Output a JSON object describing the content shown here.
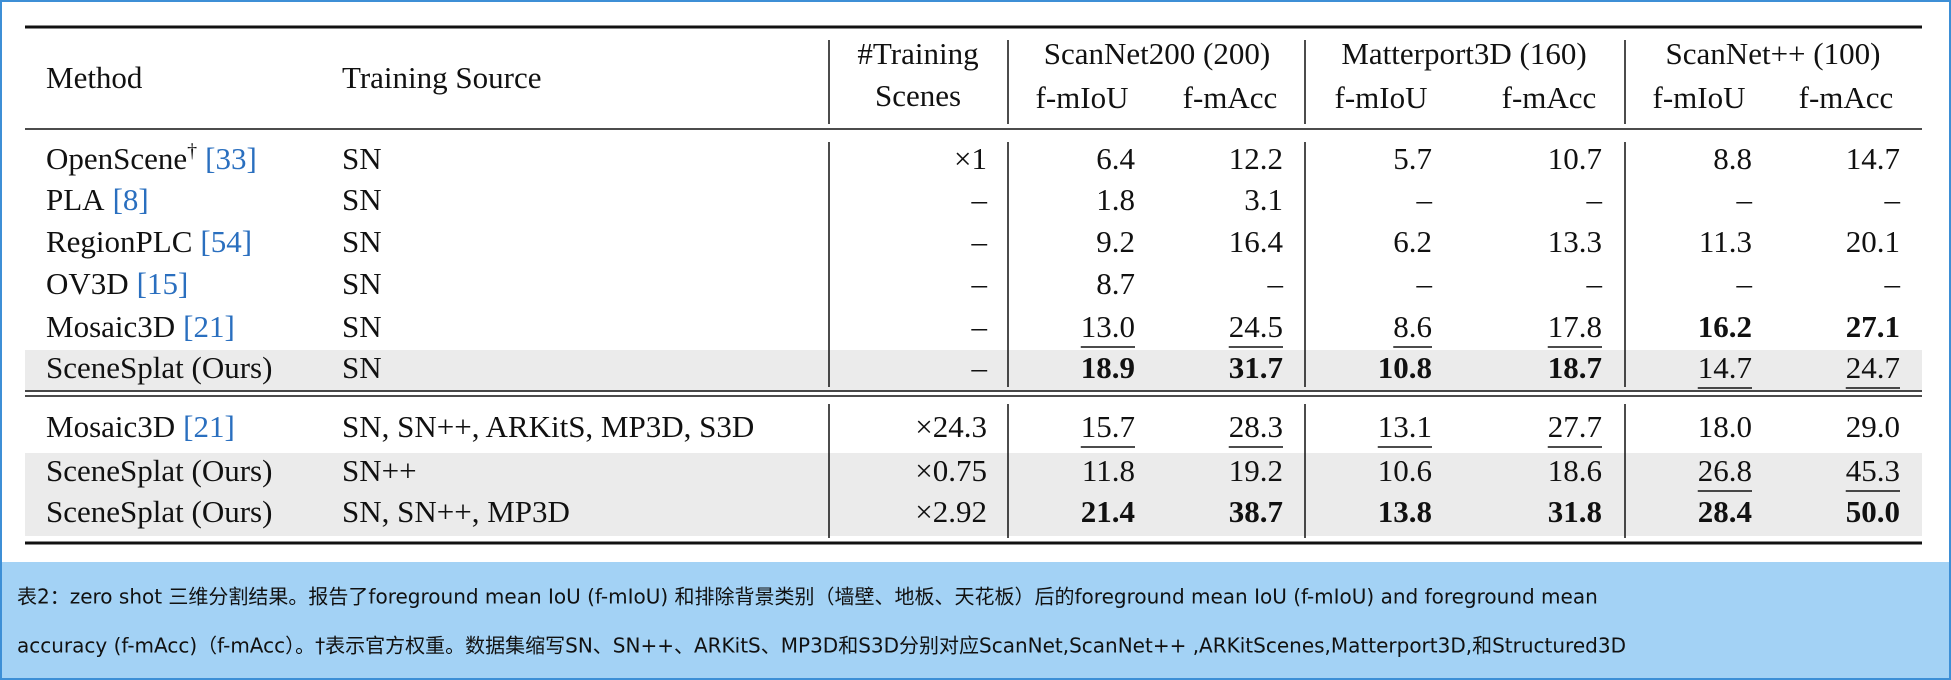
{
  "header": {
    "method": "Method",
    "source": "Training Source",
    "scenes": [
      "#Training",
      "Scenes"
    ],
    "groups": [
      "ScanNet200 (200)",
      "Matterport3D (160)",
      "ScanNet++ (100)"
    ],
    "metrics": [
      "f-mIoU",
      "f-mAcc",
      "f-mIoU",
      "f-mAcc",
      "f-mIoU",
      "f-mAcc"
    ]
  },
  "table": {
    "sections": [
      [
        {
          "method": {
            "name": "OpenScene",
            "sup": "†",
            "ref": "[33]"
          },
          "source": "SN",
          "cells": [
            "×1",
            "6.4",
            "12.2",
            "5.7",
            "10.7",
            "8.8",
            "14.7"
          ],
          "bold": [],
          "underline": [],
          "shaded": false
        },
        {
          "method": {
            "name": "PLA",
            "ref": "[8]"
          },
          "source": "SN",
          "cells": [
            "–",
            "1.8",
            "3.1",
            "–",
            "–",
            "–",
            "–"
          ],
          "bold": [],
          "underline": [],
          "shaded": false
        },
        {
          "method": {
            "name": "RegionPLC",
            "ref": "[54]"
          },
          "source": "SN",
          "cells": [
            "–",
            "9.2",
            "16.4",
            "6.2",
            "13.3",
            "11.3",
            "20.1"
          ],
          "bold": [],
          "underline": [],
          "shaded": false
        },
        {
          "method": {
            "name": "OV3D",
            "ref": "[15]"
          },
          "source": "SN",
          "cells": [
            "–",
            "8.7",
            "–",
            "–",
            "–",
            "–",
            "–"
          ],
          "bold": [],
          "underline": [],
          "shaded": false
        },
        {
          "method": {
            "name": "Mosaic3D",
            "ref": "[21]"
          },
          "source": "SN",
          "cells": [
            "–",
            "13.0",
            "24.5",
            "8.6",
            "17.8",
            "16.2",
            "27.1"
          ],
          "bold": [
            5,
            6
          ],
          "underline": [
            1,
            2,
            3,
            4
          ],
          "shaded": false
        },
        {
          "method": {
            "name": "SceneSplat (Ours)"
          },
          "source": "SN",
          "cells": [
            "–",
            "18.9",
            "31.7",
            "10.8",
            "18.7",
            "14.7",
            "24.7"
          ],
          "bold": [
            1,
            2,
            3,
            4
          ],
          "underline": [
            5,
            6
          ],
          "shaded": true
        }
      ],
      [
        {
          "method": {
            "name": "Mosaic3D",
            "ref": "[21]"
          },
          "source": "SN, SN++, ARKitS, MP3D, S3D",
          "cells": [
            "×24.3",
            "15.7",
            "28.3",
            "13.1",
            "27.7",
            "18.0",
            "29.0"
          ],
          "bold": [],
          "underline": [
            1,
            2,
            3,
            4
          ],
          "shaded": false
        },
        {
          "method": {
            "name": "SceneSplat (Ours)"
          },
          "source": "SN++",
          "cells": [
            "×0.75",
            "11.8",
            "19.2",
            "10.6",
            "18.6",
            "26.8",
            "45.3"
          ],
          "bold": [],
          "underline": [
            5,
            6
          ],
          "shaded": true
        },
        {
          "method": {
            "name": "SceneSplat (Ours)"
          },
          "source": "SN, SN++, MP3D",
          "cells": [
            "×2.92",
            "21.4",
            "38.7",
            "13.8",
            "31.8",
            "28.4",
            "50.0"
          ],
          "bold": [
            1,
            2,
            3,
            4,
            5,
            6
          ],
          "underline": [],
          "shaded": true
        }
      ]
    ]
  },
  "caption": {
    "lines": [
      "表2：zero shot 三维分割结果。报告了foreground mean IoU (f-mIoU) 和排除背景类别（墙壁、地板、天花板）后的foreground mean IoU (f-mIoU) and foreground mean",
      "accuracy (f-mAcc)（f-mAcc）。†表示官方权重。数据集缩写SN、SN++、ARKitS、MP3D和S3D分别对应ScanNet,ScanNet++ ,ARKitScenes,Matterport3D,和Structured3D"
    ]
  }
}
